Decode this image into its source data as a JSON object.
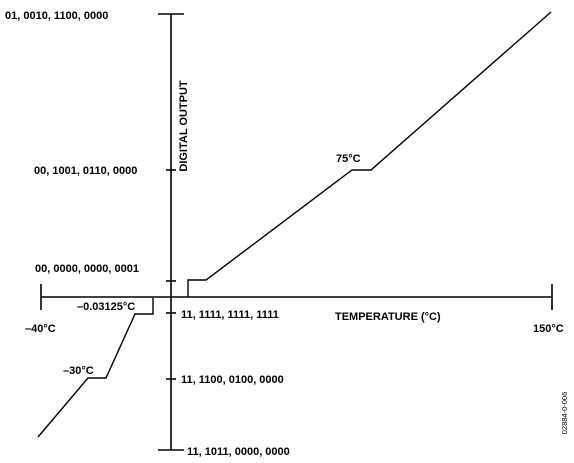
{
  "y_axis_title": "DIGITAL OUTPUT",
  "x_axis_title": "TEMPERATURE (°C)",
  "x_end_labels": {
    "left": "–40°C",
    "right": "150°C"
  },
  "output_codes": [
    "01, 0010, 1100, 0000",
    "00, 1001, 0110, 0000",
    "00, 0000, 0000, 0001",
    "11, 1111, 1111, 1111",
    "11, 1100, 0100, 0000",
    "11, 1011, 0000, 0000"
  ],
  "curve_labels": {
    "t75": "75°C",
    "tm0": "–0.03125°C",
    "tm30": "–30°C"
  },
  "figure_ref": "02884-0-006"
}
